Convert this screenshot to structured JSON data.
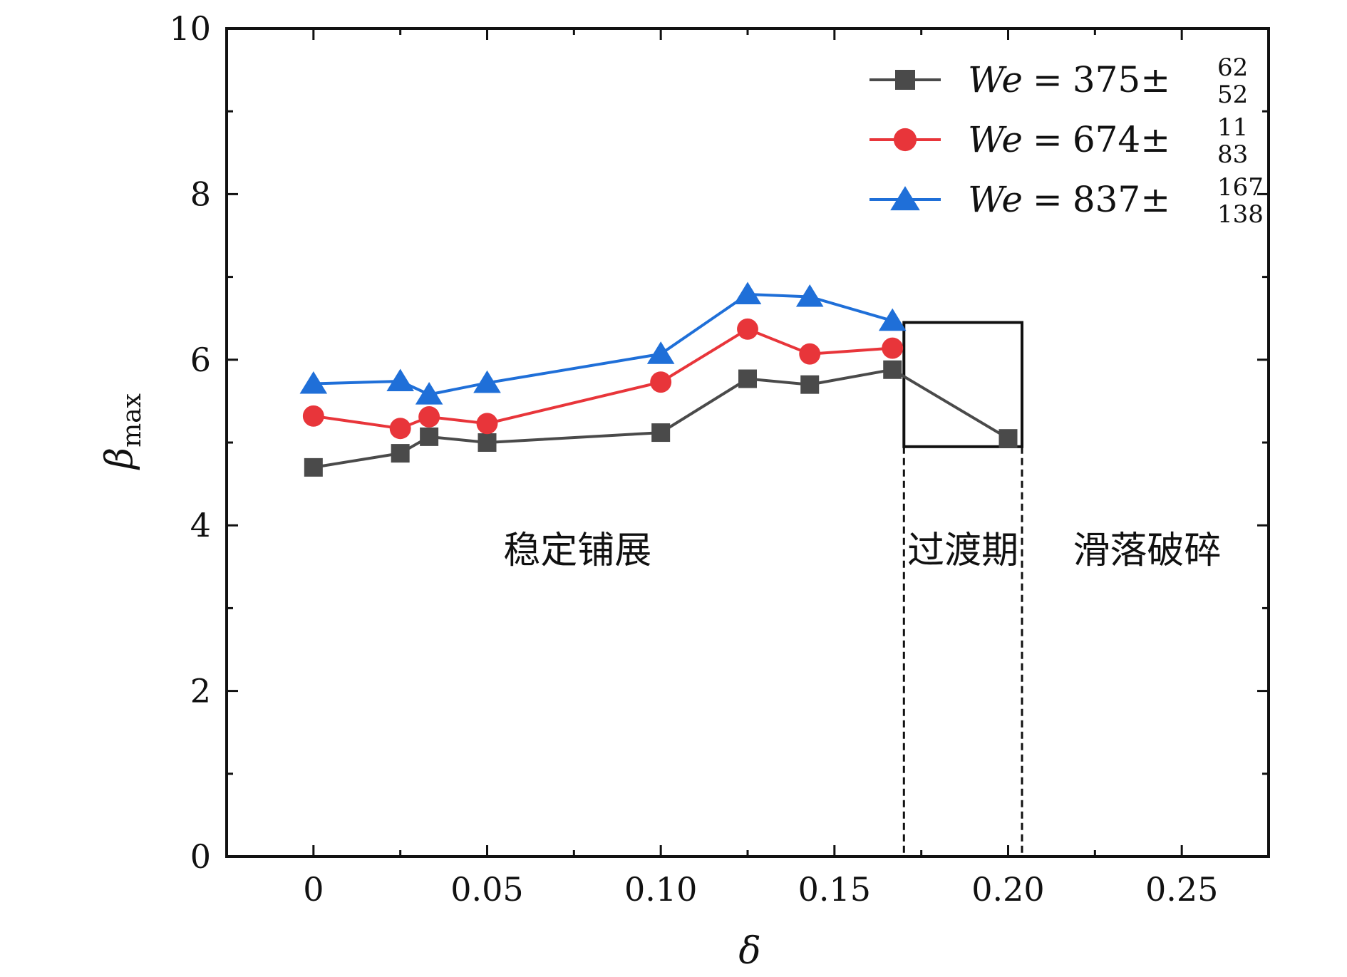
{
  "chart_data": {
    "type": "line",
    "xlabel": "δ",
    "ylabel": "β",
    "ylabel_sub": "max",
    "xlim": [
      -0.025,
      0.275
    ],
    "ylim": [
      0,
      10
    ],
    "x_ticks": [
      0,
      0.05,
      0.1,
      0.15,
      0.2,
      0.25
    ],
    "x_tick_labels": [
      "0",
      "0.05",
      "0.10",
      "0.15",
      "0.20",
      "0.25"
    ],
    "x_minor_ticks": [
      0.025,
      0.075,
      0.125,
      0.175,
      0.225
    ],
    "y_ticks": [
      0,
      2,
      4,
      6,
      8,
      10
    ],
    "y_tick_labels": [
      "0",
      "2",
      "4",
      "6",
      "8",
      "10"
    ],
    "y_minor_ticks": [
      1,
      3,
      5,
      7,
      9
    ],
    "grid": false,
    "legend_position": "top-right",
    "series": [
      {
        "name": "We = 375±",
        "prefix": "We",
        "equals": "=",
        "number": "375±",
        "sup": "62",
        "sub": "52",
        "color": "#4a4a4a",
        "marker": "square",
        "x": [
          0,
          0.025,
          0.0333,
          0.05,
          0.1,
          0.125,
          0.1429,
          0.1667,
          0.2
        ],
        "y": [
          4.7,
          4.87,
          5.07,
          5.0,
          5.12,
          5.77,
          5.7,
          5.88,
          5.05
        ]
      },
      {
        "name": "We = 674±",
        "prefix": "We",
        "equals": "=",
        "number": "674±",
        "sup": "11",
        "sub": "83",
        "color": "#e8353a",
        "marker": "circle",
        "x": [
          0,
          0.025,
          0.0333,
          0.05,
          0.1,
          0.125,
          0.1429,
          0.1667
        ],
        "y": [
          5.32,
          5.17,
          5.31,
          5.23,
          5.73,
          6.37,
          6.07,
          6.14
        ]
      },
      {
        "name": "We = 837±",
        "prefix": "We",
        "equals": "=",
        "number": "837±",
        "sup": "167",
        "sub": "138",
        "color": "#1f6fd8",
        "marker": "triangle",
        "x": [
          0,
          0.025,
          0.0333,
          0.05,
          0.1,
          0.125,
          0.1429,
          0.1667
        ],
        "y": [
          5.71,
          5.74,
          5.58,
          5.72,
          6.07,
          6.79,
          6.76,
          6.47
        ]
      }
    ],
    "annotations": {
      "box": {
        "x0": 0.17,
        "x1": 0.204,
        "y0": 4.95,
        "y1": 6.45
      },
      "dashed_lines_x": [
        0.17,
        0.204
      ],
      "regions": [
        {
          "label": "稳定铺展",
          "x": 0.076,
          "y": 3.7
        },
        {
          "label": "过渡期",
          "x": 0.187,
          "y": 3.7
        },
        {
          "label": "滑落破碎",
          "x": 0.24,
          "y": 3.7
        }
      ]
    }
  }
}
